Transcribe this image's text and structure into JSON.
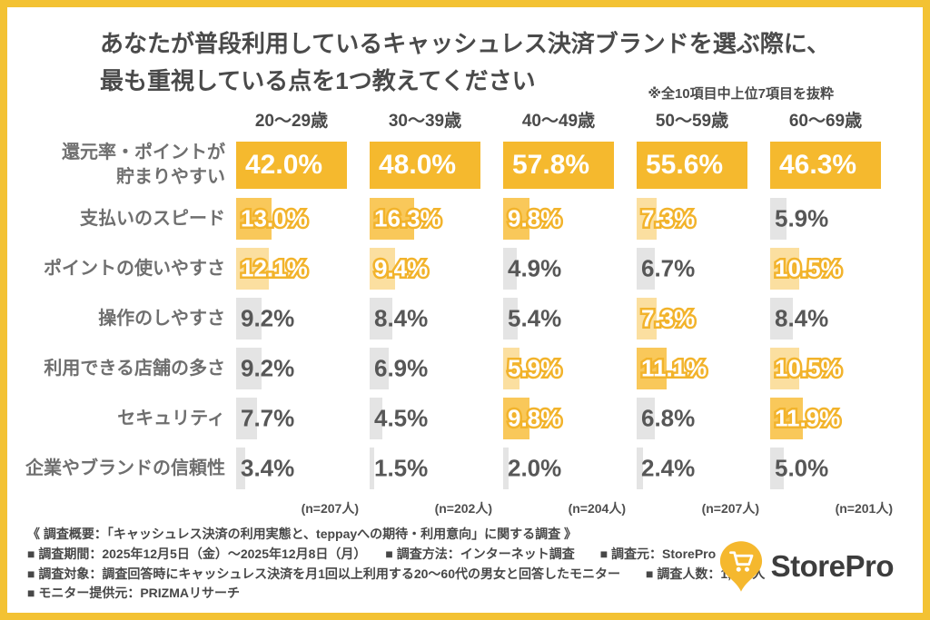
{
  "title": {
    "line1": "あなたが普段利用しているキャッシュレス決済ブランドを選ぶ際に、",
    "line2": "最も重視している点を1つ教えてください",
    "note": "※全10項目中上位7項目を抜粋"
  },
  "columns": [
    "20〜29歳",
    "30〜39歳",
    "40〜49歳",
    "50〜59歳",
    "60〜69歳"
  ],
  "sample_sizes": [
    "(n=207人)",
    "(n=202人)",
    "(n=204人)",
    "(n=207人)",
    "(n=201人)"
  ],
  "rows": [
    {
      "label_lines": [
        "還元率・ポイントが",
        "貯まりやすい"
      ],
      "values": [
        "42.0%",
        "48.0%",
        "57.8%",
        "55.6%",
        "46.3%"
      ],
      "tiers": [
        "first",
        "first",
        "first",
        "first",
        "first"
      ]
    },
    {
      "label_lines": [
        "支払いのスピード"
      ],
      "values": [
        "13.0%",
        "16.3%",
        "9.8%",
        "7.3%",
        "5.9%"
      ],
      "tiers": [
        "second",
        "second",
        "second",
        "third",
        "none"
      ]
    },
    {
      "label_lines": [
        "ポイントの使いやすさ"
      ],
      "values": [
        "12.1%",
        "9.4%",
        "4.9%",
        "6.7%",
        "10.5%"
      ],
      "tiers": [
        "third",
        "third",
        "none",
        "none",
        "third"
      ]
    },
    {
      "label_lines": [
        "操作のしやすさ"
      ],
      "values": [
        "9.2%",
        "8.4%",
        "5.4%",
        "7.3%",
        "8.4%"
      ],
      "tiers": [
        "none",
        "none",
        "none",
        "third",
        "none"
      ]
    },
    {
      "label_lines": [
        "利用できる店舗の多さ"
      ],
      "values": [
        "9.2%",
        "6.9%",
        "5.9%",
        "11.1%",
        "10.5%"
      ],
      "tiers": [
        "none",
        "none",
        "third",
        "second",
        "third"
      ]
    },
    {
      "label_lines": [
        "セキュリティ"
      ],
      "values": [
        "7.7%",
        "4.5%",
        "9.8%",
        "6.8%",
        "11.9%"
      ],
      "tiers": [
        "none",
        "none",
        "second",
        "none",
        "second"
      ]
    },
    {
      "label_lines": [
        "企業やブランドの信頼性"
      ],
      "values": [
        "3.4%",
        "1.5%",
        "2.0%",
        "2.4%",
        "5.0%"
      ],
      "tiers": [
        "none",
        "none",
        "none",
        "none",
        "none"
      ]
    }
  ],
  "chart_data": {
    "type": "bar",
    "title": "あなたが普段利用しているキャッシュレス決済ブランドを選ぶ際に、最も重視している点を1つ教えてください",
    "note": "※全10項目中上位7項目を抜粋",
    "unit": "%",
    "categories": [
      "還元率・ポイントが貯まりやすい",
      "支払いのスピード",
      "ポイントの使いやすさ",
      "操作のしやすさ",
      "利用できる店舗の多さ",
      "セキュリティ",
      "企業やブランドの信頼性"
    ],
    "series": [
      {
        "name": "20〜29歳",
        "sample_size": "(n=207人)",
        "values": [
          42.0,
          13.0,
          12.1,
          9.2,
          9.2,
          7.7,
          3.4
        ]
      },
      {
        "name": "30〜39歳",
        "sample_size": "(n=202人)",
        "values": [
          48.0,
          16.3,
          9.4,
          8.4,
          6.9,
          4.5,
          1.5
        ]
      },
      {
        "name": "40〜49歳",
        "sample_size": "(n=204人)",
        "values": [
          57.8,
          9.8,
          4.9,
          5.4,
          5.9,
          9.8,
          2.0
        ]
      },
      {
        "name": "50〜59歳",
        "sample_size": "(n=207人)",
        "values": [
          55.6,
          7.3,
          6.7,
          7.3,
          11.1,
          6.8,
          2.4
        ]
      },
      {
        "name": "60〜69歳",
        "sample_size": "(n=201人)",
        "values": [
          46.3,
          5.9,
          10.5,
          8.4,
          10.5,
          11.9,
          5.0
        ]
      }
    ],
    "legend_position": "top",
    "grid": false
  },
  "footer": {
    "lines": [
      "《 調査概要：「キャッシュレス決済の利用実態と、teppayへの期待・利用意向」に関する調査 》",
      "■ 調査期間：2025年12月5日（金）〜2025年12月8日（月）　　■ 調査方法：インターネット調査　　■ 調査元：StorePro",
      "■ 調査対象：調査回答時にキャッシュレス決済を月1回以上利用する20〜60代の男女と回答したモニター　　■ 調査人数：1,021人",
      "■ モニター提供元：PRIZMAリサーチ"
    ]
  },
  "logo": {
    "text": "StorePro",
    "icon": "cart-pin-icon"
  },
  "colors": {
    "frame_border": "#F3C233",
    "bar_first": "#F5B92E",
    "bar_second": "#F9C85A",
    "bar_third": "#FBDFA0",
    "bar_none": "#E4E4E4",
    "value_outline": "#F2B32B",
    "text_dark": "#4A4A4A",
    "text_gray": "#575757",
    "label_gray": "#6F6F6F"
  }
}
